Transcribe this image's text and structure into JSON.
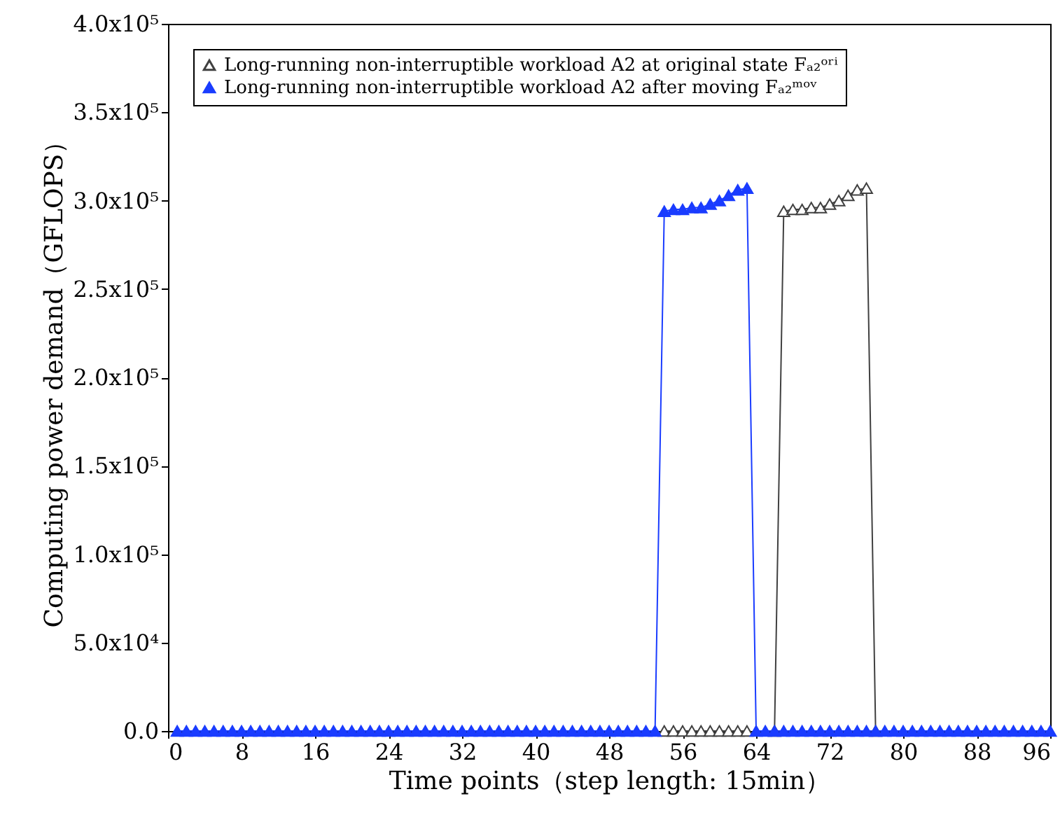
{
  "chart_data": {
    "type": "line",
    "xlabel": "Time points（step length: 15min）",
    "ylabel": "Computing power demand（GFLOPS）",
    "x": [
      1,
      2,
      3,
      4,
      5,
      6,
      7,
      8,
      9,
      10,
      11,
      12,
      13,
      14,
      15,
      16,
      17,
      18,
      19,
      20,
      21,
      22,
      23,
      24,
      25,
      26,
      27,
      28,
      29,
      30,
      31,
      32,
      33,
      34,
      35,
      36,
      37,
      38,
      39,
      40,
      41,
      42,
      43,
      44,
      45,
      46,
      47,
      48,
      49,
      50,
      51,
      52,
      53,
      54,
      55,
      56,
      57,
      58,
      59,
      60,
      61,
      62,
      63,
      64,
      65,
      66,
      67,
      68,
      69,
      70,
      71,
      72,
      73,
      74,
      75,
      76,
      77,
      78,
      79,
      80,
      81,
      82,
      83,
      84,
      85,
      86,
      87,
      88,
      89,
      90,
      91,
      92,
      93,
      94,
      95,
      96
    ],
    "series": [
      {
        "name": "Long-running non-interruptible workload A2 at original state Fₐ₂ᵒʳⁱ",
        "color": "#404040",
        "values": [
          null,
          null,
          null,
          null,
          null,
          null,
          null,
          null,
          null,
          null,
          null,
          null,
          null,
          null,
          null,
          null,
          null,
          null,
          null,
          null,
          null,
          null,
          null,
          null,
          null,
          null,
          null,
          null,
          null,
          null,
          null,
          null,
          null,
          null,
          null,
          null,
          null,
          null,
          null,
          null,
          null,
          null,
          null,
          null,
          null,
          null,
          null,
          null,
          null,
          null,
          null,
          null,
          null,
          0,
          0,
          0,
          0,
          0,
          0,
          0,
          0,
          0,
          0,
          null,
          null,
          0,
          294000,
          295000,
          295000,
          296000,
          296000,
          298000,
          300000,
          303000,
          306000,
          307000,
          0,
          null,
          null,
          null,
          null,
          null,
          null,
          null,
          null,
          null,
          null,
          null,
          null,
          null,
          null,
          null,
          null,
          null,
          null,
          null
        ]
      },
      {
        "name": "Long-running non-interruptible workload A2 after moving Fₐ₂ᵐᵒᵛ",
        "color": "#1a3cff",
        "values": [
          0,
          0,
          0,
          0,
          0,
          0,
          0,
          0,
          0,
          0,
          0,
          0,
          0,
          0,
          0,
          0,
          0,
          0,
          0,
          0,
          0,
          0,
          0,
          0,
          0,
          0,
          0,
          0,
          0,
          0,
          0,
          0,
          0,
          0,
          0,
          0,
          0,
          0,
          0,
          0,
          0,
          0,
          0,
          0,
          0,
          0,
          0,
          0,
          0,
          0,
          0,
          0,
          0,
          294000,
          295000,
          295000,
          296000,
          296000,
          298000,
          300000,
          303000,
          306000,
          307000,
          0,
          0,
          0,
          0,
          0,
          0,
          0,
          0,
          0,
          0,
          0,
          0,
          0,
          0,
          0,
          0,
          0,
          0,
          0,
          0,
          0,
          0,
          0,
          0,
          0,
          0,
          0,
          0,
          0,
          0,
          0,
          0,
          0
        ]
      }
    ],
    "xlim": [
      0,
      96
    ],
    "xticks": [
      0,
      8,
      16,
      24,
      32,
      40,
      48,
      56,
      64,
      72,
      80,
      88,
      96
    ],
    "ylim": [
      0,
      400000
    ],
    "yticks": [
      {
        "value": 0,
        "label": "0.0"
      },
      {
        "value": 50000,
        "label": "5.0x10⁴"
      },
      {
        "value": 100000,
        "label": "1.0x10⁵"
      },
      {
        "value": 150000,
        "label": "1.5x10⁵"
      },
      {
        "value": 200000,
        "label": "2.0x10⁵"
      },
      {
        "value": 250000,
        "label": "2.5x10⁵"
      },
      {
        "value": 300000,
        "label": "3.0x10⁵"
      },
      {
        "value": 350000,
        "label": "3.5x10⁵"
      },
      {
        "value": 400000,
        "label": "4.0x10⁵"
      }
    ],
    "marker": "triangle",
    "line_style": "solid",
    "grid": false,
    "legend": "top left"
  }
}
